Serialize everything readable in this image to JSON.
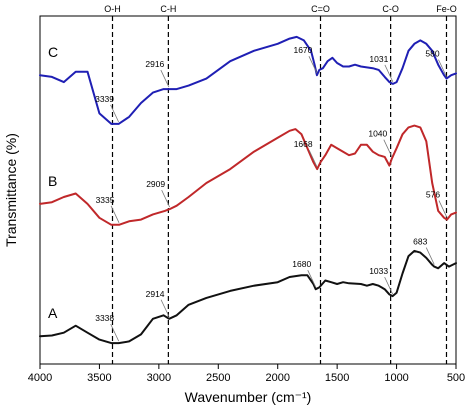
{
  "chart_data": {
    "type": "line",
    "title": "",
    "xlabel": "Wavenumber (cm⁻¹)",
    "ylabel": "Transmittance (%)",
    "xlim": [
      4000,
      500
    ],
    "x_reversed": true,
    "x_ticks": [
      4000,
      3500,
      3000,
      2500,
      2000,
      1500,
      1000,
      500
    ],
    "y_ticks": "none",
    "grid": false,
    "legend": "none",
    "reference_lines": [
      {
        "label": "O-H",
        "x": 3390
      },
      {
        "label": "C-H",
        "x": 2920
      },
      {
        "label": "C=O",
        "x": 1640
      },
      {
        "label": "C-O",
        "x": 1050
      },
      {
        "label": "Fe-O",
        "x": 580
      }
    ],
    "series": [
      {
        "label": "C",
        "color": "#1f1fb4",
        "points": [
          [
            4000,
            0.83
          ],
          [
            3900,
            0.825
          ],
          [
            3800,
            0.81
          ],
          [
            3700,
            0.84
          ],
          [
            3600,
            0.84
          ],
          [
            3500,
            0.72
          ],
          [
            3400,
            0.69
          ],
          [
            3339,
            0.69
          ],
          [
            3250,
            0.71
          ],
          [
            3150,
            0.75
          ],
          [
            3050,
            0.78
          ],
          [
            2960,
            0.79
          ],
          [
            2916,
            0.79
          ],
          [
            2850,
            0.79
          ],
          [
            2750,
            0.8
          ],
          [
            2600,
            0.82
          ],
          [
            2400,
            0.87
          ],
          [
            2200,
            0.9
          ],
          [
            2000,
            0.92
          ],
          [
            1900,
            0.935
          ],
          [
            1840,
            0.94
          ],
          [
            1780,
            0.93
          ],
          [
            1720,
            0.9
          ],
          [
            1690,
            0.86
          ],
          [
            1670,
            0.83
          ],
          [
            1650,
            0.845
          ],
          [
            1620,
            0.85
          ],
          [
            1580,
            0.87
          ],
          [
            1540,
            0.88
          ],
          [
            1500,
            0.865
          ],
          [
            1450,
            0.855
          ],
          [
            1400,
            0.855
          ],
          [
            1350,
            0.86
          ],
          [
            1300,
            0.855
          ],
          [
            1200,
            0.85
          ],
          [
            1150,
            0.845
          ],
          [
            1100,
            0.825
          ],
          [
            1060,
            0.81
          ],
          [
            1031,
            0.805
          ],
          [
            1000,
            0.81
          ],
          [
            950,
            0.85
          ],
          [
            900,
            0.9
          ],
          [
            850,
            0.92
          ],
          [
            800,
            0.93
          ],
          [
            750,
            0.92
          ],
          [
            700,
            0.9
          ],
          [
            650,
            0.86
          ],
          [
            600,
            0.83
          ],
          [
            580,
            0.82
          ],
          [
            540,
            0.83
          ],
          [
            500,
            0.835
          ]
        ],
        "annotations": [
          {
            "text": "3339",
            "x": 3339
          },
          {
            "text": "2916",
            "x": 2916
          },
          {
            "text": "1670",
            "x": 1670
          },
          {
            "text": "1031",
            "x": 1031
          },
          {
            "text": "580",
            "x": 580
          }
        ]
      },
      {
        "label": "B",
        "color": "#c0282a",
        "points": [
          [
            4000,
            0.46
          ],
          [
            3900,
            0.465
          ],
          [
            3800,
            0.48
          ],
          [
            3700,
            0.49
          ],
          [
            3600,
            0.46
          ],
          [
            3500,
            0.42
          ],
          [
            3400,
            0.4
          ],
          [
            3335,
            0.4
          ],
          [
            3250,
            0.41
          ],
          [
            3150,
            0.415
          ],
          [
            3050,
            0.43
          ],
          [
            2950,
            0.44
          ],
          [
            2909,
            0.445
          ],
          [
            2850,
            0.455
          ],
          [
            2750,
            0.48
          ],
          [
            2600,
            0.52
          ],
          [
            2400,
            0.56
          ],
          [
            2200,
            0.61
          ],
          [
            2000,
            0.65
          ],
          [
            1900,
            0.67
          ],
          [
            1850,
            0.675
          ],
          [
            1800,
            0.66
          ],
          [
            1750,
            0.62
          ],
          [
            1700,
            0.58
          ],
          [
            1668,
            0.56
          ],
          [
            1640,
            0.58
          ],
          [
            1600,
            0.6
          ],
          [
            1550,
            0.63
          ],
          [
            1500,
            0.62
          ],
          [
            1450,
            0.61
          ],
          [
            1400,
            0.6
          ],
          [
            1350,
            0.605
          ],
          [
            1300,
            0.63
          ],
          [
            1250,
            0.63
          ],
          [
            1200,
            0.61
          ],
          [
            1150,
            0.6
          ],
          [
            1100,
            0.595
          ],
          [
            1060,
            0.57
          ],
          [
            1040,
            0.59
          ],
          [
            1000,
            0.62
          ],
          [
            950,
            0.66
          ],
          [
            900,
            0.68
          ],
          [
            850,
            0.685
          ],
          [
            800,
            0.68
          ],
          [
            750,
            0.64
          ],
          [
            700,
            0.52
          ],
          [
            650,
            0.44
          ],
          [
            600,
            0.42
          ],
          [
            576,
            0.415
          ],
          [
            540,
            0.43
          ],
          [
            500,
            0.435
          ]
        ],
        "annotations": [
          {
            "text": "3335",
            "x": 3335
          },
          {
            "text": "2909",
            "x": 2909
          },
          {
            "text": "1668",
            "x": 1668
          },
          {
            "text": "1040",
            "x": 1040
          },
          {
            "text": "576",
            "x": 576
          }
        ]
      },
      {
        "label": "A",
        "color": "#111111",
        "points": [
          [
            4000,
            0.08
          ],
          [
            3900,
            0.082
          ],
          [
            3800,
            0.09
          ],
          [
            3700,
            0.11
          ],
          [
            3600,
            0.09
          ],
          [
            3500,
            0.07
          ],
          [
            3400,
            0.06
          ],
          [
            3338,
            0.06
          ],
          [
            3250,
            0.065
          ],
          [
            3150,
            0.085
          ],
          [
            3050,
            0.13
          ],
          [
            2960,
            0.14
          ],
          [
            2914,
            0.13
          ],
          [
            2850,
            0.14
          ],
          [
            2750,
            0.17
          ],
          [
            2600,
            0.19
          ],
          [
            2400,
            0.21
          ],
          [
            2200,
            0.225
          ],
          [
            2000,
            0.235
          ],
          [
            1900,
            0.25
          ],
          [
            1800,
            0.255
          ],
          [
            1750,
            0.255
          ],
          [
            1700,
            0.23
          ],
          [
            1680,
            0.215
          ],
          [
            1650,
            0.22
          ],
          [
            1600,
            0.24
          ],
          [
            1550,
            0.235
          ],
          [
            1500,
            0.23
          ],
          [
            1450,
            0.235
          ],
          [
            1400,
            0.232
          ],
          [
            1300,
            0.23
          ],
          [
            1250,
            0.225
          ],
          [
            1200,
            0.23
          ],
          [
            1150,
            0.225
          ],
          [
            1100,
            0.215
          ],
          [
            1060,
            0.2
          ],
          [
            1033,
            0.195
          ],
          [
            1000,
            0.205
          ],
          [
            950,
            0.26
          ],
          [
            900,
            0.31
          ],
          [
            850,
            0.325
          ],
          [
            800,
            0.32
          ],
          [
            750,
            0.305
          ],
          [
            700,
            0.285
          ],
          [
            683,
            0.28
          ],
          [
            650,
            0.275
          ],
          [
            600,
            0.29
          ],
          [
            560,
            0.28
          ],
          [
            500,
            0.29
          ]
        ],
        "annotations": [
          {
            "text": "3338",
            "x": 3338
          },
          {
            "text": "2914",
            "x": 2914
          },
          {
            "text": "1680",
            "x": 1680
          },
          {
            "text": "1033",
            "x": 1033
          },
          {
            "text": "683",
            "x": 683
          }
        ]
      }
    ]
  }
}
